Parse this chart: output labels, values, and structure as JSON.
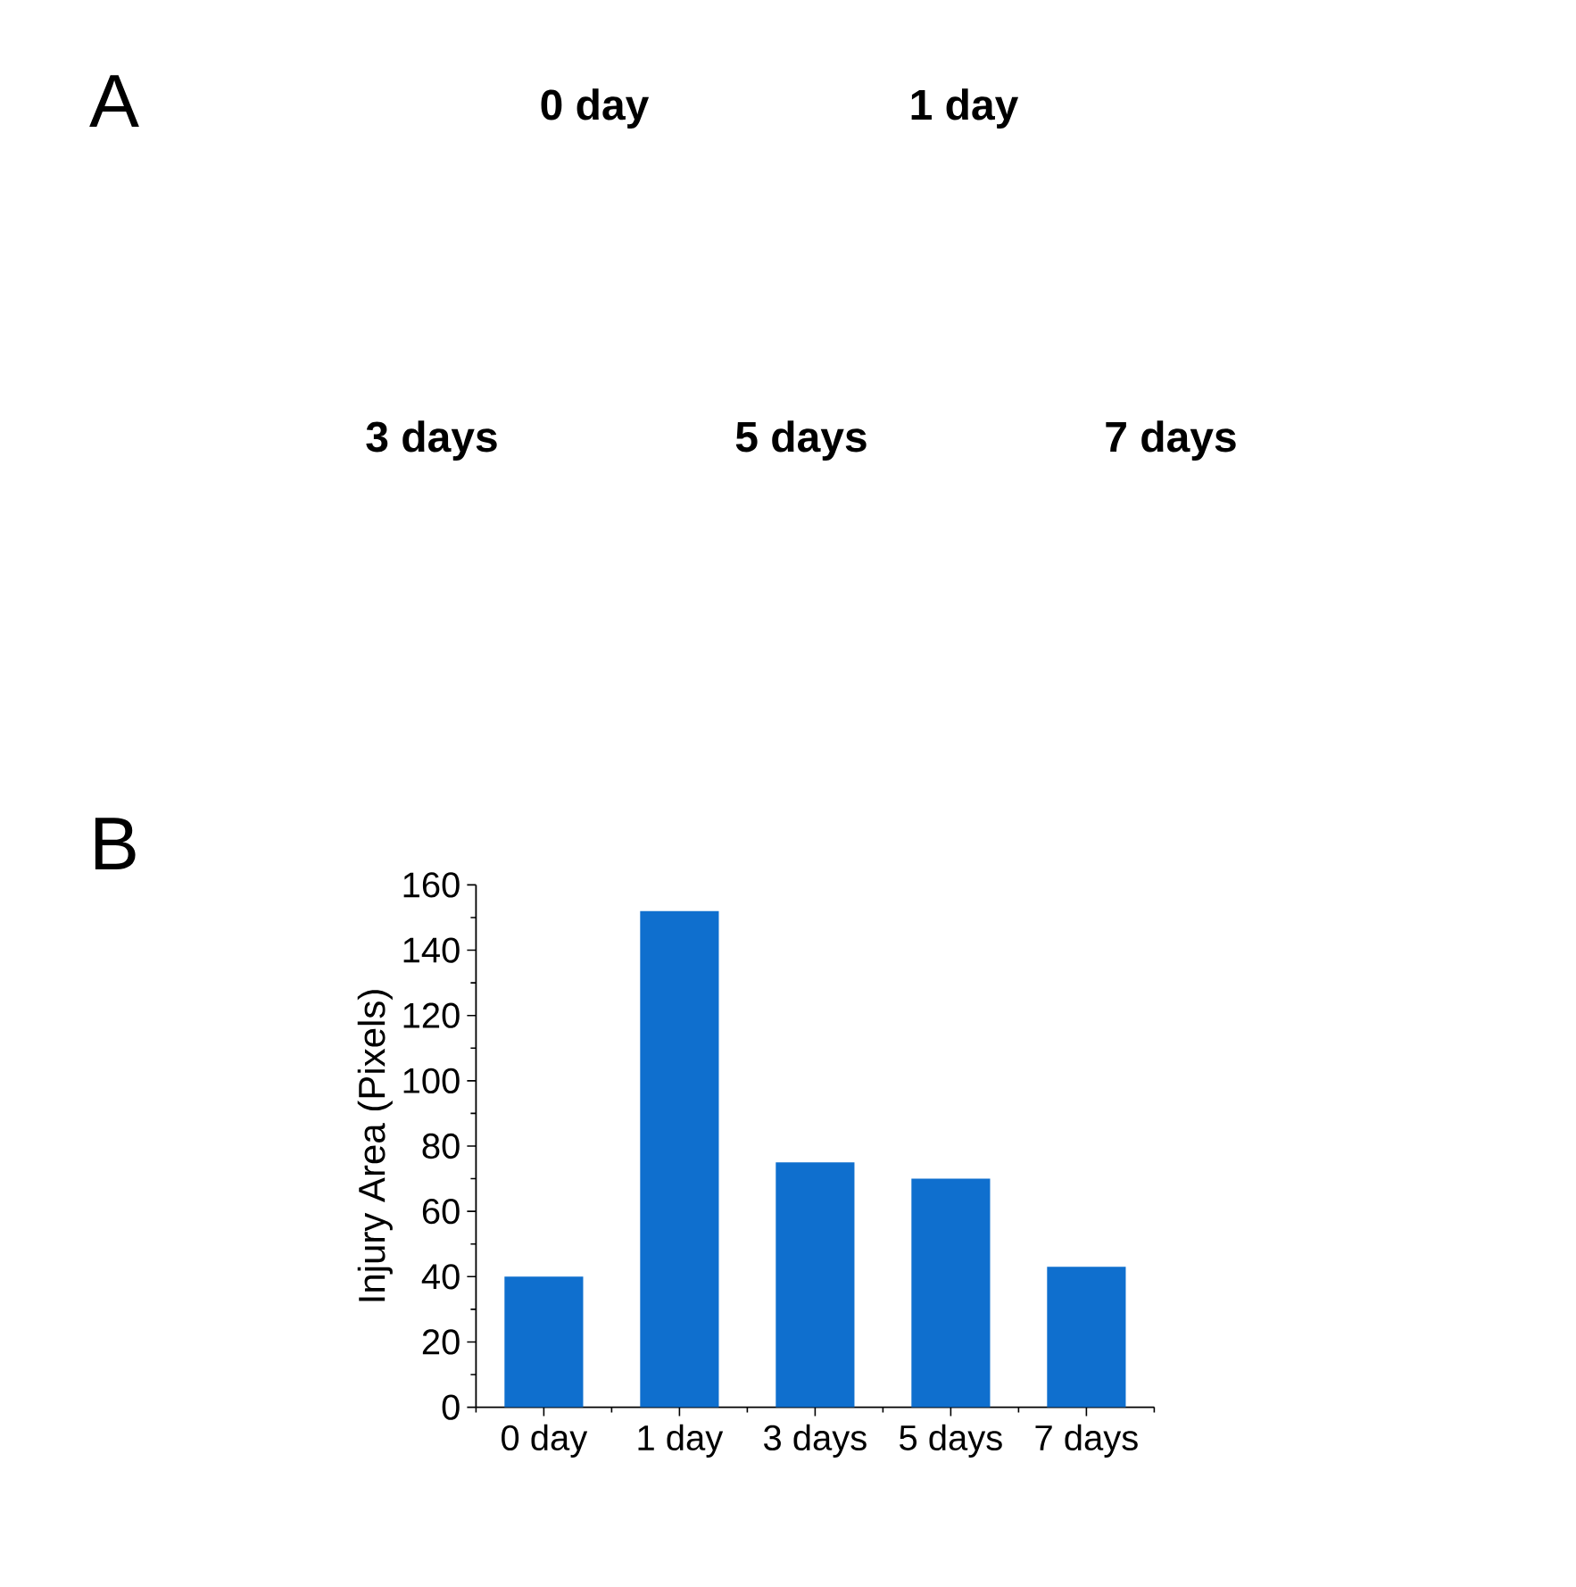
{
  "chart_data": {
    "type": "bar",
    "annotations": [
      "A",
      "0 day",
      "1 day",
      "3 days",
      "5 days",
      "7 days",
      "B"
    ],
    "ylabel": "Injury Area (Pixels)",
    "categories": [
      "0 day",
      "1 day",
      "3 days",
      "5 days",
      "7 days"
    ],
    "values": [
      40,
      152,
      75,
      70,
      43
    ],
    "color": "#0f6fce",
    "ylim": [
      0,
      160
    ],
    "yticks": [
      0,
      20,
      40,
      60,
      80,
      100,
      120,
      140,
      160
    ]
  }
}
